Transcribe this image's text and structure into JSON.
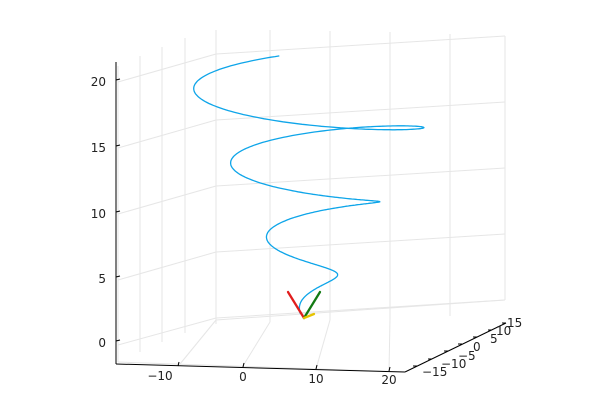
{
  "chart_data": {
    "type": "line",
    "title": "",
    "xlabel": "",
    "ylabel": "",
    "zlabel": "",
    "grid": true,
    "legend": "none",
    "x_ticks": [
      "−10",
      "0",
      "10",
      "20"
    ],
    "y_ticks": [
      "−15",
      "−10",
      "−5",
      "0",
      "5",
      "10",
      "15"
    ],
    "z_ticks": [
      "0",
      "5",
      "10",
      "15",
      "20"
    ],
    "series": [
      {
        "color": "#0ea5e9",
        "style": "helix",
        "z_range": [
          2,
          20.3
        ],
        "turns": 3.2,
        "radius_range": [
          1,
          16
        ]
      }
    ],
    "vectors": [
      {
        "color": "#e11d1d"
      },
      {
        "color": "#137a13"
      },
      {
        "color": "#e6c300"
      }
    ]
  }
}
